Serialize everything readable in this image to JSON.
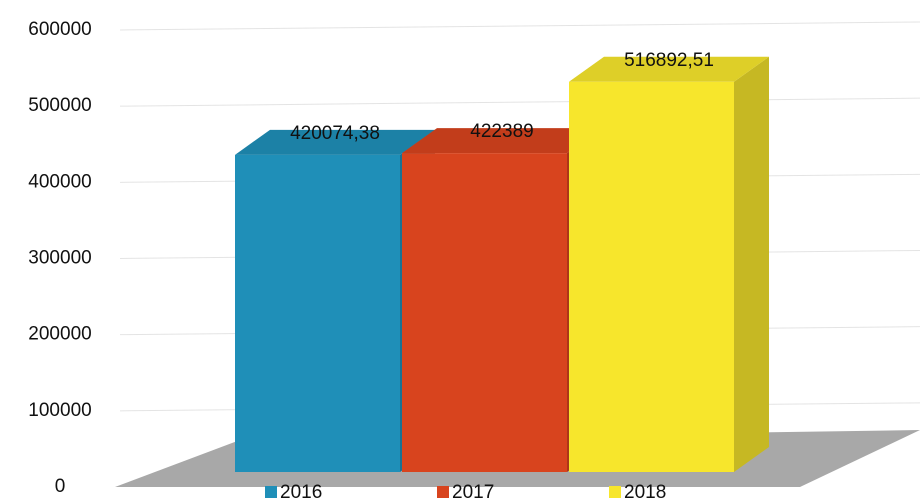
{
  "chart_data": {
    "type": "bar3d",
    "categories": [
      null
    ],
    "series": [
      {
        "name": "2016",
        "color": "#1f8fb8",
        "values": [
          420074.38
        ],
        "value_labels": [
          "420074,38"
        ]
      },
      {
        "name": "2017",
        "color": "#d8441e",
        "values": [
          422389
        ],
        "value_labels": [
          "422389"
        ]
      },
      {
        "name": "2018",
        "color": "#f7e62c",
        "values": [
          516892.51
        ],
        "value_labels": [
          "516892,51"
        ]
      }
    ],
    "ylim": [
      0,
      600000
    ],
    "yticks": [
      0,
      100000,
      200000,
      300000,
      400000,
      500000,
      600000
    ],
    "grid": true
  }
}
